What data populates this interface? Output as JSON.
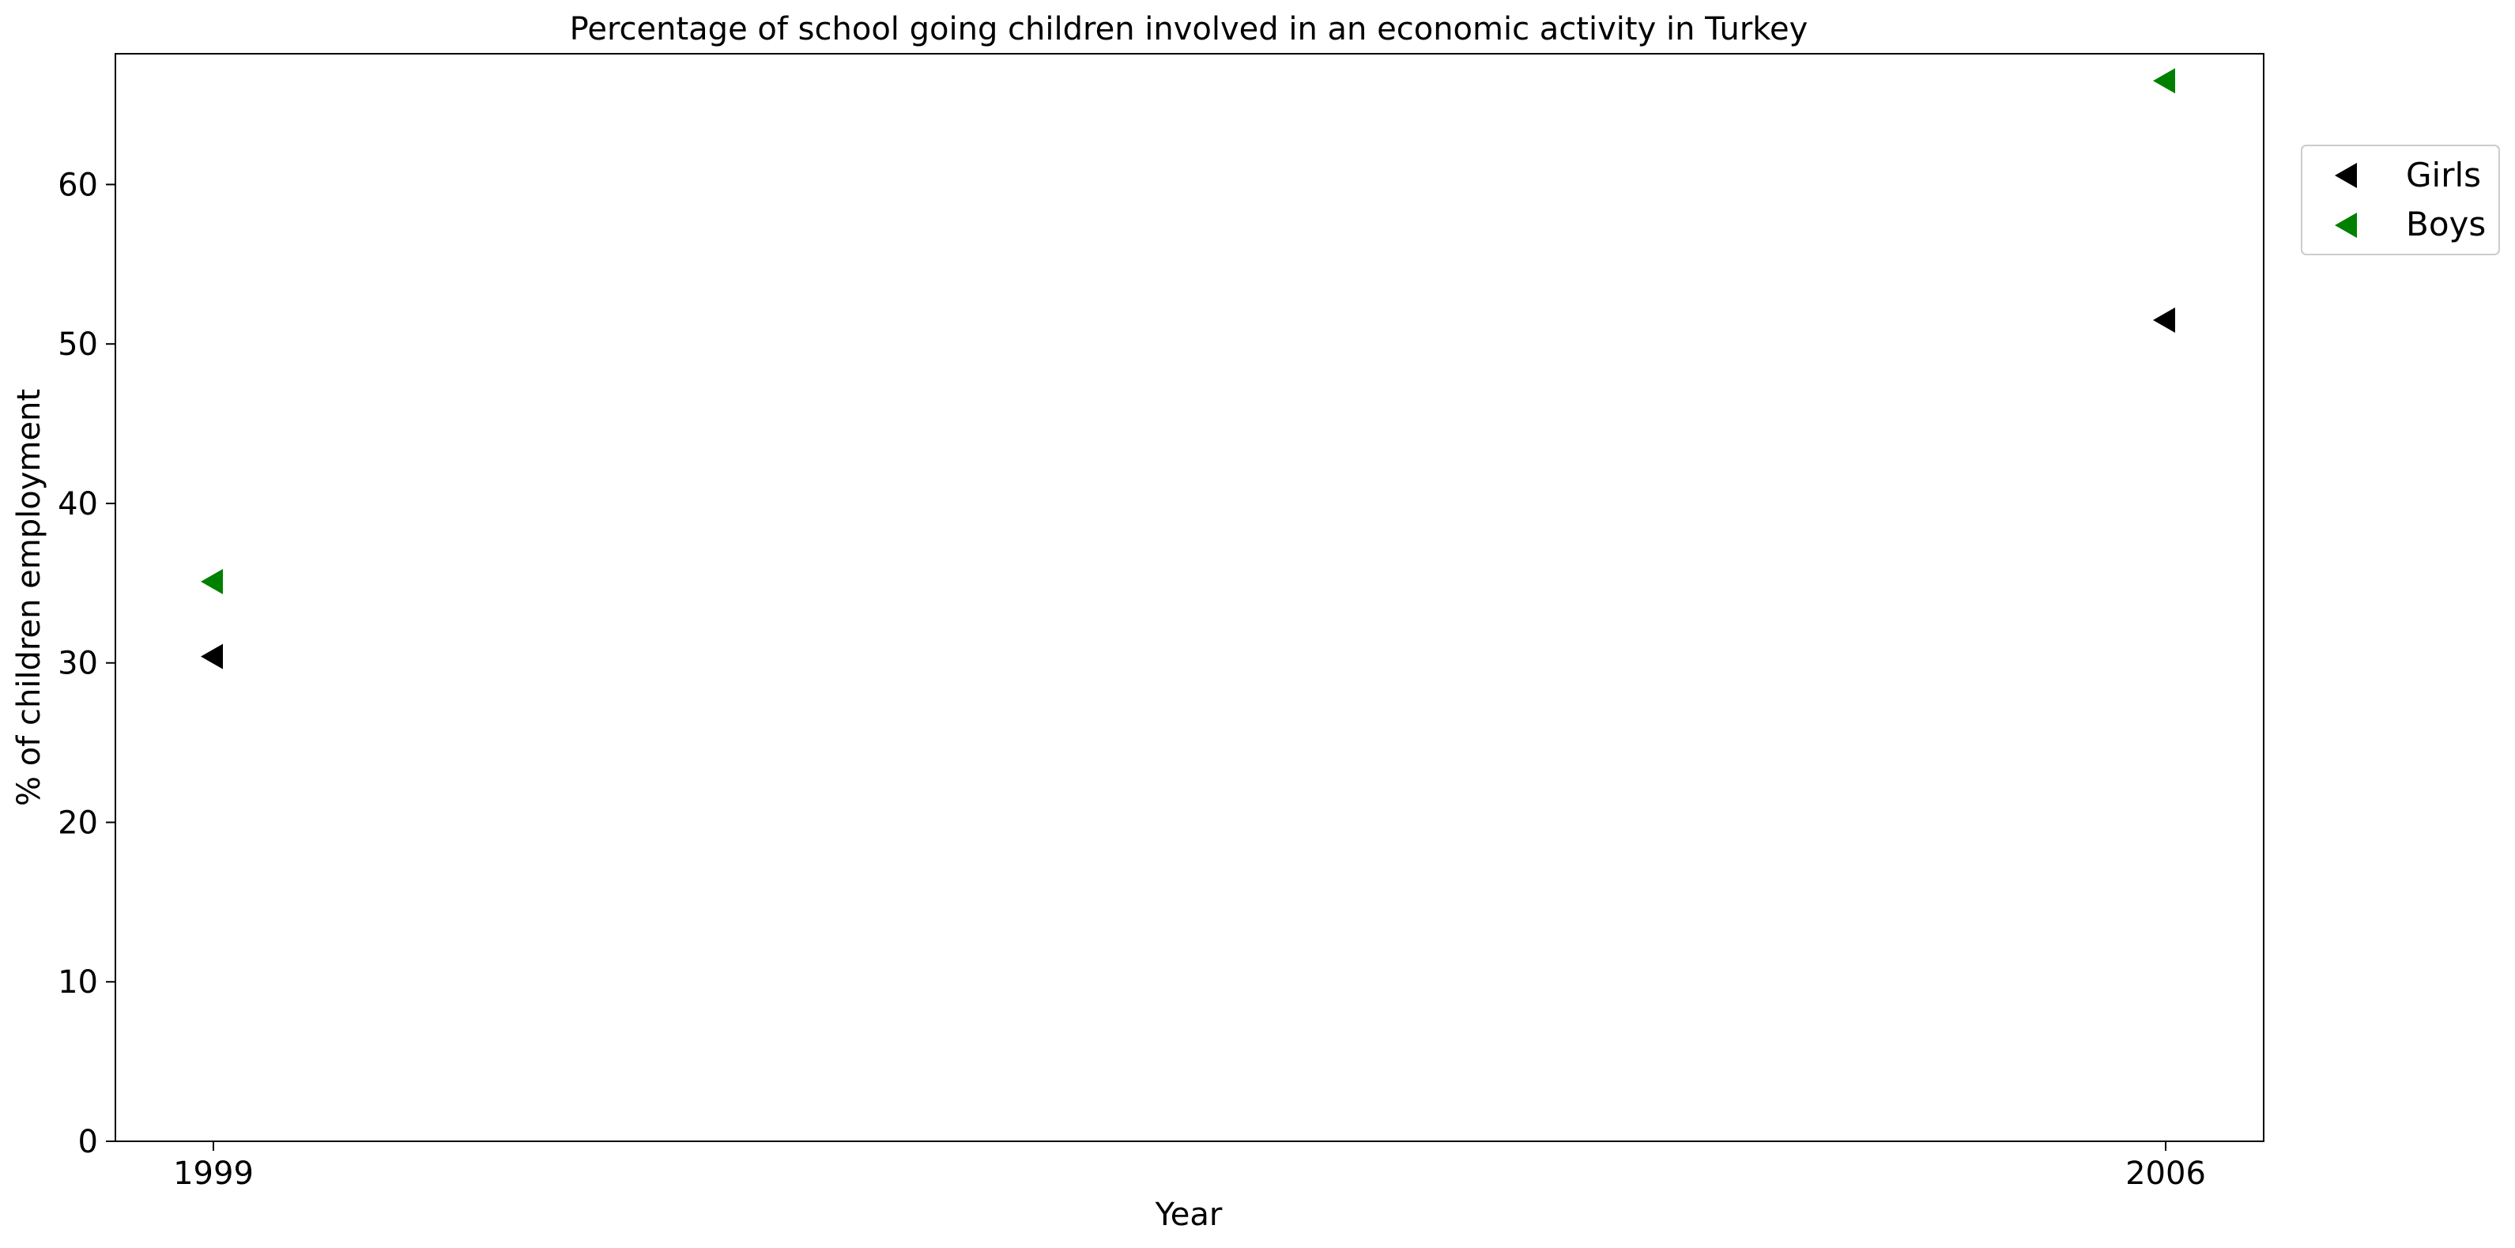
{
  "chart_data": {
    "type": "scatter",
    "title": "Percentage of school going children involved in an economic activity in Turkey",
    "xlabel": "Year",
    "ylabel": "% of children employment",
    "categories": [
      "1999",
      "2006"
    ],
    "series": [
      {
        "name": "Girls",
        "color": "#000000",
        "marker": "triangle-left",
        "values": [
          30.4,
          51.5
        ]
      },
      {
        "name": "Boys",
        "color": "#008000",
        "marker": "triangle-left",
        "values": [
          35.1,
          66.5
        ]
      }
    ],
    "ylim": [
      0,
      68.2
    ],
    "yticks": [
      0,
      10,
      20,
      30,
      40,
      50,
      60
    ],
    "grid": false,
    "legend_position": "outside top-right"
  }
}
